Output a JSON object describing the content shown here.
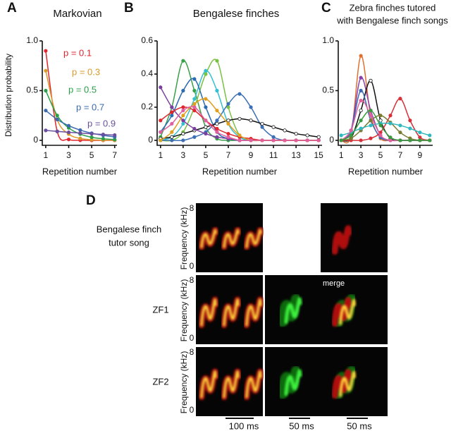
{
  "chart_data": [
    {
      "type": "line",
      "letter": "A",
      "title": "Markovian",
      "y_label": "Distribution probability",
      "x_label": "Repetition number",
      "x": [
        1,
        2,
        3,
        4,
        5,
        6,
        7
      ],
      "xlim": [
        0.7,
        7.2
      ],
      "xticks": [
        1,
        3,
        5,
        7
      ],
      "ylim": [
        -0.05,
        1
      ],
      "yticks": [
        0,
        {
          "value": 0.5,
          "label": "0.5"
        },
        {
          "value": 1,
          "label": "1.0"
        }
      ],
      "series": [
        {
          "name": "p = 0.1",
          "color": "#e0262e",
          "values": [
            0.9,
            0.09,
            0.009,
            0.001,
            0,
            0,
            0
          ]
        },
        {
          "name": "p = 0.3",
          "color": "#d99a2b",
          "values": [
            0.7,
            0.21,
            0.063,
            0.019,
            0.006,
            0.002,
            0.001
          ]
        },
        {
          "name": "p = 0.5",
          "color": "#2aa04a",
          "values": [
            0.5,
            0.25,
            0.125,
            0.063,
            0.031,
            0.016,
            0.008
          ]
        },
        {
          "name": "p = 0.7",
          "color": "#3a6ab0",
          "values": [
            0.3,
            0.21,
            0.147,
            0.103,
            0.072,
            0.05,
            0.035
          ]
        },
        {
          "name": "p = 0.9",
          "color": "#6a4fa0",
          "values": [
            0.1,
            0.09,
            0.081,
            0.073,
            0.066,
            0.059,
            0.053
          ]
        }
      ]
    },
    {
      "type": "line",
      "letter": "B",
      "title": "Bengalese finches",
      "x_label": "Repetition number",
      "x": [
        1,
        2,
        3,
        4,
        5,
        6,
        7,
        8,
        9,
        10,
        11,
        12,
        13,
        14,
        15
      ],
      "xlim": [
        0.7,
        15.3
      ],
      "xticks": [
        1,
        3,
        5,
        7,
        9,
        11,
        13,
        15
      ],
      "ylim": [
        -0.03,
        0.6
      ],
      "yticks": [
        0,
        0.2,
        0.4,
        0.6
      ],
      "series": [
        {
          "color": "#3aa04a",
          "values": [
            0.02,
            0.2,
            0.48,
            0.3,
            0.08,
            0.01,
            0,
            0,
            0,
            0,
            0,
            0,
            0,
            0,
            0
          ]
        },
        {
          "color": "#7ac143",
          "values": [
            0,
            0,
            0.05,
            0.2,
            0.4,
            0.48,
            0.2,
            0.03,
            0,
            0,
            0,
            0,
            0,
            0,
            0
          ]
        },
        {
          "color": "#35c0d0",
          "values": [
            0,
            0.02,
            0.1,
            0.25,
            0.42,
            0.3,
            0.1,
            0.02,
            0,
            0,
            0,
            0,
            0,
            0,
            0
          ]
        },
        {
          "color": "#2b6cb0",
          "values": [
            0.05,
            0.15,
            0.3,
            0.37,
            0.2,
            0.05,
            0.01,
            0,
            0,
            0,
            0,
            0,
            0,
            0,
            0
          ]
        },
        {
          "color": "#3b6fb6",
          "values": [
            0,
            0,
            0,
            0.02,
            0.05,
            0.12,
            0.22,
            0.28,
            0.2,
            0.08,
            0.02,
            0,
            0,
            0,
            0
          ]
        },
        {
          "color": "#111111",
          "values": [
            0.01,
            0.02,
            0.04,
            0.06,
            0.08,
            0.1,
            0.12,
            0.13,
            0.12,
            0.1,
            0.08,
            0.06,
            0.04,
            0.03,
            0.02
          ]
        },
        {
          "color": "#7b3f9e",
          "values": [
            0.32,
            0.2,
            0.12,
            0.07,
            0.04,
            0.02,
            0.01,
            0,
            0,
            0,
            0,
            0,
            0,
            0,
            0
          ]
        },
        {
          "color": "#e0262e",
          "values": [
            0.12,
            0.17,
            0.2,
            0.18,
            0.12,
            0.07,
            0.04,
            0.02,
            0.01,
            0,
            0,
            0,
            0,
            0,
            0
          ]
        },
        {
          "color": "#e0a020",
          "values": [
            0,
            0.05,
            0.15,
            0.22,
            0.25,
            0.18,
            0.1,
            0.03,
            0,
            0,
            0,
            0,
            0,
            0,
            0
          ]
        },
        {
          "color": "#e05fa0",
          "values": [
            0.05,
            0.1,
            0.18,
            0.2,
            0.12,
            0.05,
            0.02,
            0,
            0,
            0,
            0,
            0,
            0,
            0,
            0
          ]
        }
      ]
    },
    {
      "type": "line",
      "letter": "C",
      "title": [
        "Zebra finches tutored",
        "with Bengalese finch songs"
      ],
      "x_label": "Repetition number",
      "x": [
        1,
        2,
        3,
        4,
        5,
        6,
        7,
        8,
        9,
        10
      ],
      "xlim": [
        0.7,
        10.3
      ],
      "xticks": [
        1,
        3,
        5,
        7,
        9
      ],
      "ylim": [
        -0.05,
        1
      ],
      "yticks": [
        0,
        {
          "value": 0.5,
          "label": "0.5"
        },
        {
          "value": 1,
          "label": "1.0"
        }
      ],
      "series": [
        {
          "color": "#e07030",
          "values": [
            0,
            0.05,
            0.85,
            0.25,
            0.02,
            0,
            0,
            0,
            0,
            0
          ]
        },
        {
          "color": "#8a3fae",
          "values": [
            0,
            0.1,
            0.63,
            0.3,
            0.05,
            0,
            0,
            0,
            0,
            0
          ]
        },
        {
          "color": "#111111",
          "values": [
            0,
            0.02,
            0.3,
            0.6,
            0.2,
            0.02,
            0,
            0,
            0,
            0
          ]
        },
        {
          "color": "#3a6ab0",
          "values": [
            0,
            0.1,
            0.5,
            0.2,
            0.03,
            0,
            0,
            0,
            0,
            0
          ]
        },
        {
          "color": "#d6303a",
          "values": [
            0,
            0,
            0,
            0.02,
            0.08,
            0.25,
            0.42,
            0.2,
            0.03,
            0
          ]
        },
        {
          "color": "#7a7a30",
          "values": [
            0,
            0.02,
            0.1,
            0.2,
            0.25,
            0.18,
            0.08,
            0.02,
            0,
            0
          ]
        },
        {
          "color": "#30b8c0",
          "values": [
            0.05,
            0.08,
            0.12,
            0.15,
            0.17,
            0.17,
            0.15,
            0.12,
            0.08,
            0.05
          ]
        },
        {
          "color": "#e060a0",
          "values": [
            0,
            0.1,
            0.4,
            0.25,
            0.05,
            0,
            0,
            0,
            0,
            0
          ]
        },
        {
          "color": "#3a9a40",
          "values": [
            0,
            0.05,
            0.2,
            0.3,
            0.15,
            0.03,
            0,
            0,
            0,
            0
          ]
        }
      ]
    }
  ],
  "panel_d": {
    "letter": "D",
    "rows": [
      [
        "Bengalese finch",
        "tutor song"
      ],
      [
        "ZF1"
      ],
      [
        "ZF2"
      ]
    ],
    "y_label": "Frequency (kHz)",
    "y_top": "8",
    "y_bottom": "0",
    "merge_label": "merge",
    "scale_bars": [
      "100 ms",
      "50 ms",
      "50 ms"
    ]
  }
}
